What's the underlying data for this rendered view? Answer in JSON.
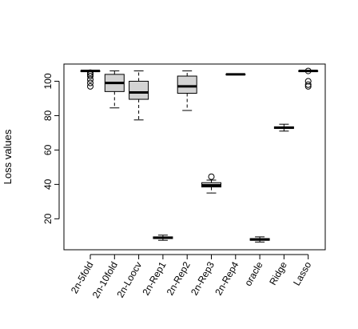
{
  "chart_data": {
    "type": "boxplot",
    "title": "",
    "xlabel": "",
    "ylabel": "Loss values",
    "ylim": [
      2,
      110
    ],
    "y_ticks": [
      20,
      40,
      60,
      80,
      100
    ],
    "grid": false,
    "legend": "none",
    "categories": [
      "2n-5fold",
      "2n-10fold",
      "2n-Loocv",
      "2n-Rep1",
      "2n-Rep2",
      "2n-Rep3",
      "2n-Rep4",
      "oracle",
      "Ridge",
      "Lasso"
    ],
    "series": [
      {
        "box": {
          "min": 106,
          "q1": 106,
          "median": 106,
          "q3": 106,
          "max": 106
        },
        "outliers": [
          105,
          104,
          103,
          101,
          99,
          97
        ]
      },
      {
        "box": {
          "min": 84.5,
          "q1": 94,
          "median": 99,
          "q3": 104,
          "max": 106
        },
        "outliers": []
      },
      {
        "box": {
          "min": 77.5,
          "q1": 89.5,
          "median": 93.5,
          "q3": 100,
          "max": 106
        },
        "outliers": []
      },
      {
        "box": {
          "min": 7.5,
          "q1": 8.5,
          "median": 9,
          "q3": 9.5,
          "max": 10.5
        },
        "outliers": []
      },
      {
        "box": {
          "min": 83,
          "q1": 93,
          "median": 97,
          "q3": 103,
          "max": 106
        },
        "outliers": []
      },
      {
        "box": {
          "min": 35,
          "q1": 38.5,
          "median": 39.5,
          "q3": 41,
          "max": 42.5
        },
        "outliers": [
          44.5
        ]
      },
      {
        "box": {
          "min": 104,
          "q1": 104,
          "median": 104,
          "q3": 104,
          "max": 104
        },
        "outliers": []
      },
      {
        "box": {
          "min": 6.5,
          "q1": 7.5,
          "median": 8,
          "q3": 8.5,
          "max": 9.5
        },
        "outliers": []
      },
      {
        "box": {
          "min": 71,
          "q1": 72.5,
          "median": 73,
          "q3": 73.5,
          "max": 75
        },
        "outliers": []
      },
      {
        "box": {
          "min": 106,
          "q1": 106,
          "median": 106,
          "q3": 106,
          "max": 106
        },
        "outliers": [
          106,
          100,
          98,
          97
        ]
      }
    ],
    "colors": {
      "box_fill": "#d3d3d3",
      "stroke": "#000000"
    }
  }
}
